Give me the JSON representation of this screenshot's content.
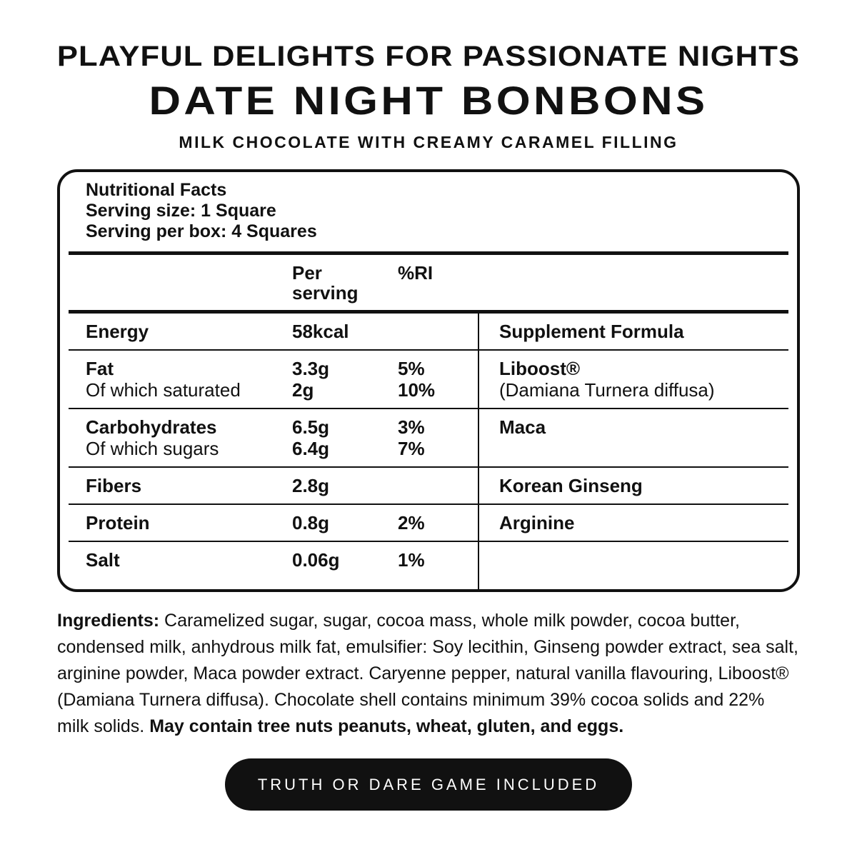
{
  "colors": {
    "ink": "#111111",
    "background": "#ffffff",
    "badge_background": "#111111",
    "badge_text": "#ffffff"
  },
  "header": {
    "tagline": "PLAYFUL DELIGHTS FOR PASSIONATE NIGHTS",
    "title": "DATE NIGHT BONBONS",
    "subtitle": "MILK CHOCOLATE WITH CREAMY CARAMEL FILLING"
  },
  "nutrition_facts": {
    "heading": "Nutritional Facts",
    "serving_size": "Serving size: 1 Square",
    "servings_per_box": "Serving per box: 4 Squares",
    "col_per_serving": "Per serving",
    "col_ri": "%RI",
    "rows": [
      {
        "label": "Energy",
        "value": "58kcal",
        "supplement": "Supplement Formula"
      },
      {
        "label": "Fat",
        "sub_label": "Of which saturated",
        "value": "3.3g",
        "sub_value": "2g",
        "ri": "5%",
        "sub_ri": "10%",
        "supplement": "Liboost®",
        "supplement_sub": "(Damiana Turnera diffusa)"
      },
      {
        "label": "Carbohydrates",
        "sub_label": "Of which sugars",
        "value": "6.5g",
        "sub_value": "6.4g",
        "ri": "3%",
        "sub_ri": "7%",
        "supplement": "Maca"
      },
      {
        "label": "Fibers",
        "value": "2.8g",
        "supplement": "Korean Ginseng"
      },
      {
        "label": "Protein",
        "value": "0.8g",
        "ri": "2%",
        "supplement": "Arginine"
      },
      {
        "label": "Salt",
        "value": "0.06g",
        "ri": "1%"
      }
    ]
  },
  "ingredients": {
    "label": "Ingredients:",
    "body": " Caramelized sugar, sugar, cocoa mass, whole milk powder, cocoa butter, condensed milk, anhydrous milk fat, emulsifier: Soy lecithin, Ginseng powder extract, sea salt, arginine powder, Maca powder extract. Caryenne pepper, natural vanilla flavouring, Liboost® (Damiana Turnera diffusa). Chocolate shell contains minimum 39% cocoa solids and 22% milk solids. ",
    "allergens": "May contain tree nuts peanuts, wheat, gluten, and eggs."
  },
  "badge": {
    "label": "TRUTH OR DARE GAME INCLUDED"
  }
}
